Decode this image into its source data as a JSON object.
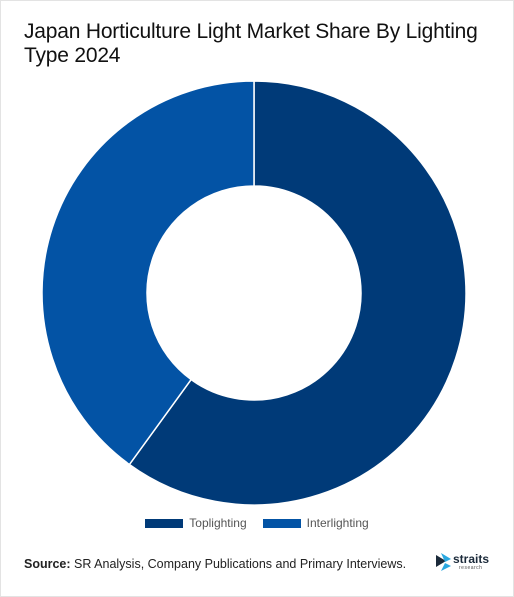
{
  "title": "Japan Horticulture Light Market Share By Lighting Type 2024",
  "legend": [
    {
      "label": "Toplighting",
      "color": "#003a78"
    },
    {
      "label": "Interlighting",
      "color": "#0353a5"
    }
  ],
  "source": {
    "label": "Source:",
    "text": " SR Analysis, Company Publications and Primary Interviews."
  },
  "logo": {
    "name": "straits",
    "sub": "research"
  },
  "chart_data": {
    "type": "pie",
    "donut": true,
    "categories": [
      "Toplighting",
      "Interlighting"
    ],
    "values": [
      60,
      40
    ],
    "colors": [
      "#003a78",
      "#0353a5"
    ],
    "legend_position": "bottom"
  }
}
